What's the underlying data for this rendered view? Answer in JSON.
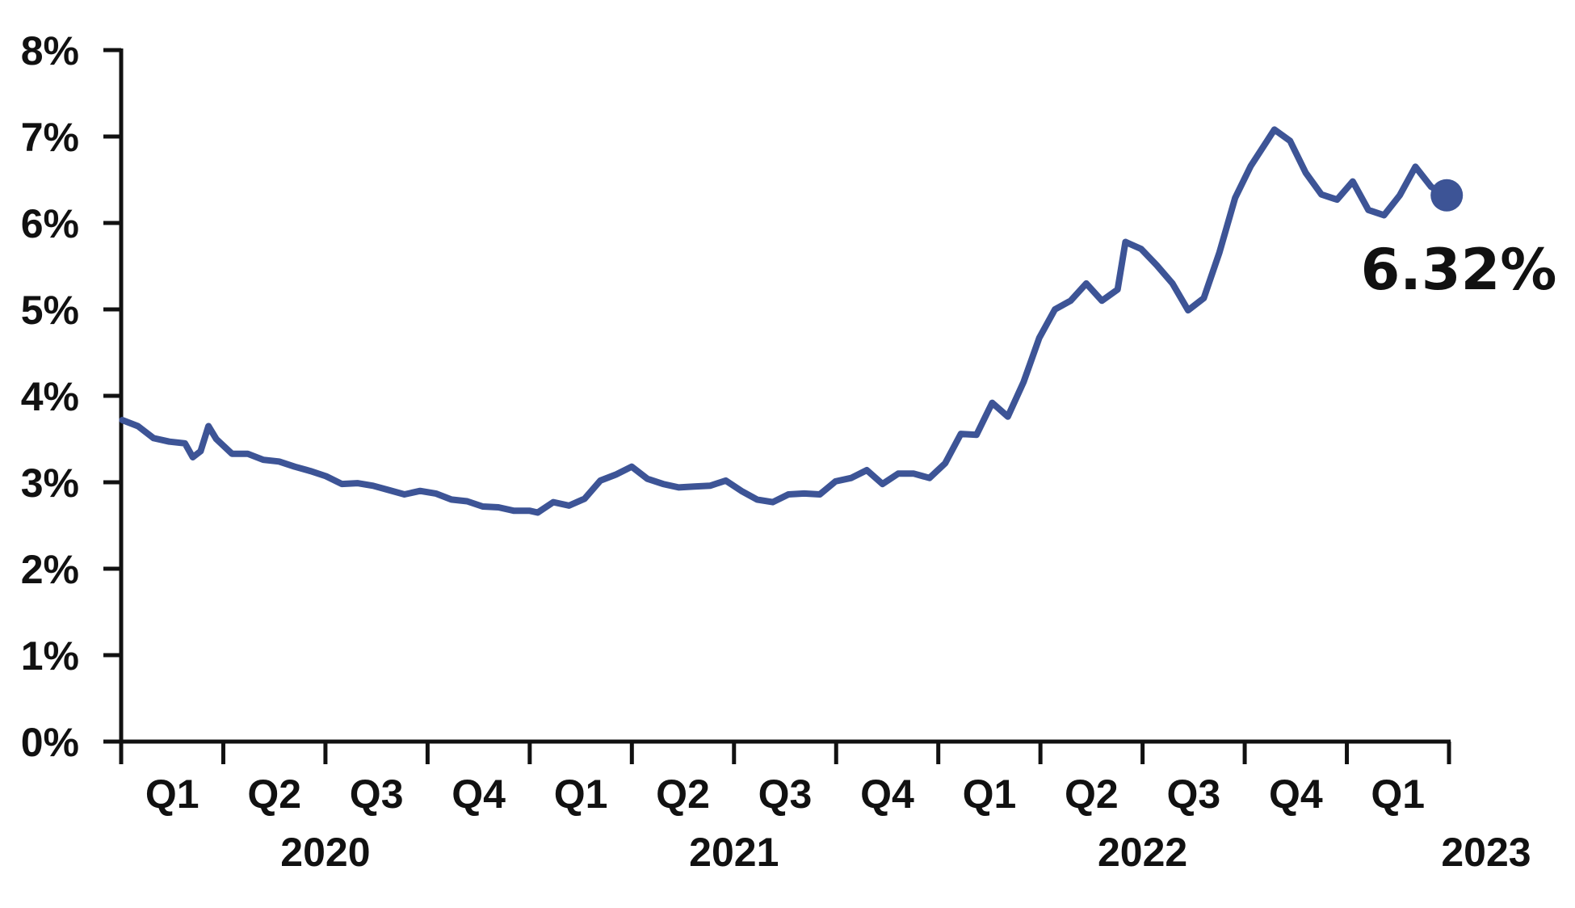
{
  "chart_data": {
    "type": "line",
    "title": "",
    "xlabel": "",
    "ylabel": "",
    "ylim": [
      0,
      8
    ],
    "y_ticks": [
      "0%",
      "1%",
      "2%",
      "3%",
      "4%",
      "5%",
      "6%",
      "7%",
      "8%"
    ],
    "x_ticks": {
      "quarters": [
        "Q1",
        "Q2",
        "Q3",
        "Q4",
        "Q1",
        "Q2",
        "Q3",
        "Q4",
        "Q1",
        "Q2",
        "Q3",
        "Q4",
        "Q1"
      ],
      "years": [
        "2020",
        "2021",
        "2022",
        "2023"
      ]
    },
    "grid": false,
    "line_color": "#3d5496",
    "end_label": "6.32%",
    "series": [
      {
        "x": [
          "2020-01-02",
          "2020-01-16",
          "2020-01-30",
          "2020-02-13",
          "2020-02-27",
          "2020-03-05",
          "2020-03-12",
          "2020-03-19",
          "2020-03-26",
          "2020-04-09",
          "2020-04-23",
          "2020-05-07",
          "2020-05-21",
          "2020-06-04",
          "2020-06-18",
          "2020-07-02",
          "2020-07-16",
          "2020-07-30",
          "2020-08-13",
          "2020-08-27",
          "2020-09-10",
          "2020-09-24",
          "2020-10-08",
          "2020-10-22",
          "2020-11-05",
          "2020-11-19",
          "2020-12-03",
          "2020-12-17",
          "2020-12-31",
          "2021-01-07",
          "2021-01-21",
          "2021-02-04",
          "2021-02-18",
          "2021-03-04",
          "2021-03-18",
          "2021-04-01",
          "2021-04-15",
          "2021-04-29",
          "2021-05-13",
          "2021-05-27",
          "2021-06-10",
          "2021-06-24",
          "2021-07-08",
          "2021-07-22",
          "2021-08-05",
          "2021-08-19",
          "2021-09-02",
          "2021-09-16",
          "2021-09-30",
          "2021-10-14",
          "2021-10-28",
          "2021-11-11",
          "2021-11-25",
          "2021-12-09",
          "2021-12-23",
          "2022-01-06",
          "2022-01-20",
          "2022-02-03",
          "2022-02-17",
          "2022-03-03",
          "2022-03-17",
          "2022-03-31",
          "2022-04-14",
          "2022-04-28",
          "2022-05-12",
          "2022-05-26",
          "2022-06-09",
          "2022-06-16",
          "2022-06-30",
          "2022-07-14",
          "2022-07-28",
          "2022-08-11",
          "2022-08-25",
          "2022-09-08",
          "2022-09-22",
          "2022-10-06",
          "2022-10-20",
          "2022-10-27",
          "2022-11-10",
          "2022-11-24",
          "2022-12-08",
          "2022-12-22",
          "2023-01-05",
          "2023-01-19",
          "2023-02-02",
          "2023-02-16",
          "2023-03-02",
          "2023-03-16",
          "2023-03-30"
        ],
        "values": [
          3.72,
          3.65,
          3.51,
          3.47,
          3.45,
          3.29,
          3.36,
          3.65,
          3.5,
          3.33,
          3.33,
          3.26,
          3.24,
          3.18,
          3.13,
          3.07,
          2.98,
          2.99,
          2.96,
          2.91,
          2.86,
          2.9,
          2.87,
          2.8,
          2.78,
          2.72,
          2.71,
          2.67,
          2.67,
          2.65,
          2.77,
          2.73,
          2.81,
          3.02,
          3.09,
          3.18,
          3.04,
          2.98,
          2.94,
          2.95,
          2.96,
          3.02,
          2.9,
          2.8,
          2.77,
          2.86,
          2.87,
          2.86,
          3.01,
          3.05,
          3.14,
          2.98,
          3.1,
          3.1,
          3.05,
          3.22,
          3.56,
          3.55,
          3.92,
          3.76,
          4.16,
          4.67,
          5.0,
          5.1,
          5.3,
          5.1,
          5.23,
          5.78,
          5.7,
          5.51,
          5.3,
          4.99,
          5.13,
          5.66,
          6.29,
          6.66,
          6.94,
          7.08,
          6.95,
          6.58,
          6.33,
          6.27,
          6.48,
          6.15,
          6.09,
          6.32,
          6.65,
          6.42,
          6.32
        ]
      }
    ]
  }
}
